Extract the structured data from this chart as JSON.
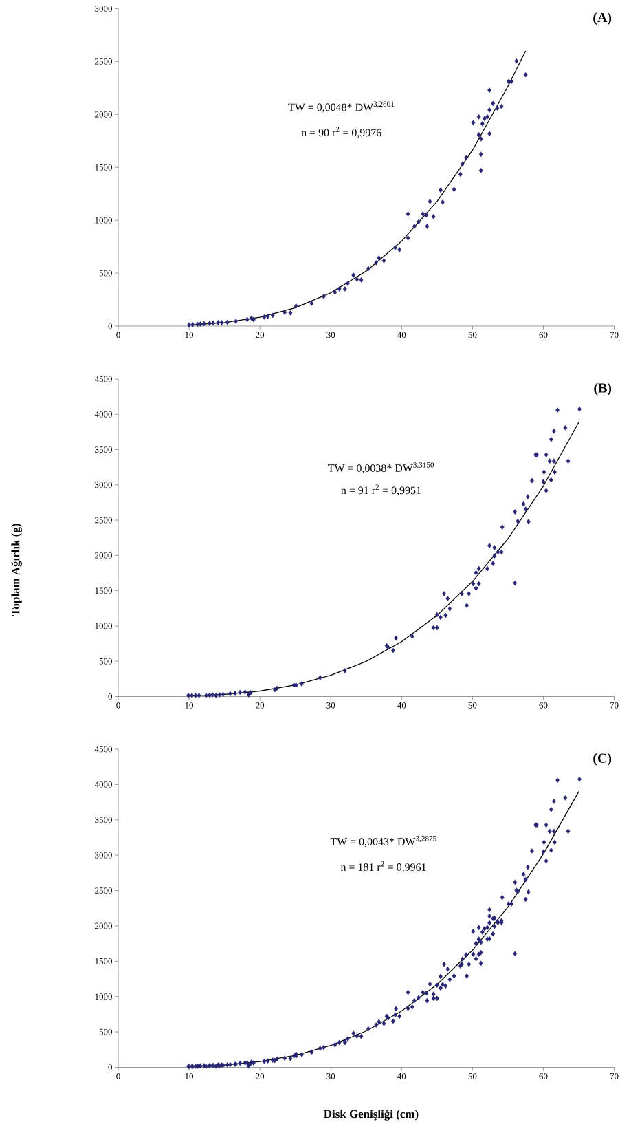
{
  "chart_data": [
    {
      "type": "scatter",
      "title": "(A)",
      "annotations": [
        "TW = 0,0048* DW$^{3,2601}$",
        "n = 90   r$^{2}$ = 0,9976"
      ],
      "xlim": [
        0,
        70
      ],
      "xticks": [
        0,
        10,
        20,
        30,
        40,
        50,
        60,
        70
      ],
      "ylim": [
        0,
        3000
      ],
      "yticks": [
        0,
        500,
        1000,
        1500,
        2000,
        2500,
        3000
      ],
      "marker": "diamond",
      "series": [
        {
          "type": "scatter",
          "color": "#262673",
          "x": [
            10,
            10.5,
            11.2,
            11.6,
            12.1,
            12.9,
            13.4,
            14.1,
            14.6,
            15.4,
            16.6,
            18.2,
            18.8,
            19.1,
            20.6,
            21.1,
            21.8,
            23.5,
            24.3,
            25.1,
            27.3,
            29,
            30.6,
            31.2,
            32,
            32.4,
            33.2,
            33.7,
            34.3,
            35.3,
            36.4,
            36.8,
            37.5,
            39.1,
            39.7,
            40.9,
            40.9,
            41.8,
            42.4,
            43,
            43.5,
            43.6,
            44,
            44.5,
            45.5,
            45.8,
            47.4,
            48.3,
            48.6,
            49.1,
            50.1,
            50.9,
            50.9,
            51.2,
            51.2,
            51.2,
            51.4,
            51.7,
            52.1,
            52.4,
            52.4,
            52.4,
            52.9,
            53.5,
            54.1,
            55.1,
            55.5,
            56.2,
            57.5
          ],
          "values": [
            10,
            13,
            16,
            20,
            23,
            26,
            29,
            33,
            33,
            36,
            46,
            62,
            75,
            62,
            85,
            91,
            101,
            130,
            124,
            189,
            215,
            280,
            319,
            351,
            351,
            403,
            481,
            442,
            436,
            543,
            598,
            644,
            618,
            741,
            722,
            1060,
            833,
            943,
            985,
            1060,
            1050,
            943,
            1177,
            1034,
            1285,
            1171,
            1291,
            1434,
            1532,
            1590,
            1922,
            1977,
            1808,
            1769,
            1470,
            1623,
            1912,
            1961,
            1977,
            2228,
            2042,
            1818,
            2104,
            2059,
            2075,
            2312,
            2312,
            2504,
            2374
          ]
        },
        {
          "type": "line",
          "color": "#000000",
          "marker": "none",
          "x": [
            10,
            15,
            20,
            25,
            30,
            35,
            40,
            45,
            50,
            55,
            57.5
          ],
          "values": [
            9,
            33,
            84,
            173,
            314,
            519,
            802,
            1177,
            1661,
            2265,
            2600
          ]
        }
      ]
    },
    {
      "type": "scatter",
      "title": "(B)",
      "ylabel": "Toplam Ağırlık (g)",
      "annotations": [
        "TW = 0,0038* DW$^{3,3150}$",
        "n = 91  r$^{2}$ = 0,9951"
      ],
      "xlim": [
        0,
        70
      ],
      "xticks": [
        0,
        10,
        20,
        30,
        40,
        50,
        60,
        70
      ],
      "ylim": [
        0,
        4500
      ],
      "yticks": [
        0,
        500,
        1000,
        1500,
        2000,
        2500,
        3000,
        3500,
        4000,
        4500
      ],
      "marker": "diamond",
      "series": [
        {
          "type": "scatter",
          "color": "#262673",
          "x": [
            9.9,
            10.4,
            10.9,
            11.4,
            12.4,
            12.9,
            13.3,
            13.8,
            14.3,
            14.8,
            15.8,
            16.5,
            17.2,
            17.9,
            18.4,
            18.7,
            22.1,
            22.4,
            24.8,
            25.1,
            25.9,
            28.5,
            32,
            37.9,
            38.1,
            38.8,
            39.2,
            41.5,
            44.5,
            45,
            45,
            45.5,
            46,
            46.2,
            46.5,
            46.8,
            48.5,
            49.2,
            49.5,
            50.1,
            50.5,
            50.5,
            50.9,
            50.9,
            52.1,
            52.4,
            52.9,
            53.1,
            53.1,
            53.6,
            54.1,
            54.2,
            56,
            56,
            56.4,
            57.2,
            57.5,
            57.8,
            57.9,
            58.4,
            58.9,
            59.1,
            60,
            60.1,
            60.4,
            60.4,
            60.9,
            61.1,
            61.1,
            61.5,
            61.5,
            61.6,
            62,
            63.1,
            63.5,
            65.1
          ],
          "values": [
            15,
            15,
            15,
            15,
            15,
            19,
            24,
            15,
            24,
            29,
            39,
            44,
            58,
            63,
            24,
            54,
            97,
            117,
            161,
            161,
            180,
            268,
            365,
            721,
            697,
            653,
            828,
            853,
            975,
            975,
            1160,
            1121,
            1457,
            1150,
            1389,
            1243,
            1457,
            1291,
            1457,
            1598,
            1535,
            1754,
            1813,
            1598,
            1813,
            2139,
            1886,
            2110,
            1993,
            2047,
            2047,
            2402,
            2617,
            1608,
            2485,
            2729,
            2656,
            2831,
            2480,
            3060,
            3426,
            3426,
            3046,
            3182,
            3426,
            2919,
            3338,
            3070,
            3645,
            3762,
            3338,
            3182,
            4059,
            3811,
            3338,
            4074
          ]
        },
        {
          "type": "line",
          "color": "#000000",
          "marker": "none",
          "x": [
            10,
            15,
            20,
            25,
            30,
            35,
            40,
            45,
            50,
            55,
            60,
            65
          ],
          "values": [
            8,
            30,
            78,
            164,
            300,
            499,
            778,
            1149,
            1630,
            2235,
            2983,
            3888
          ]
        }
      ]
    },
    {
      "type": "scatter",
      "title": "(C)",
      "xlabel": "Disk Genişliği (cm)",
      "annotations": [
        "TW = 0,0043* DW$^{3,2875}$",
        "n = 181   r$^{2}$ = 0,9961"
      ],
      "xlim": [
        0,
        70
      ],
      "xticks": [
        0,
        10,
        20,
        30,
        40,
        50,
        60,
        70
      ],
      "ylim": [
        0,
        4500
      ],
      "yticks": [
        0,
        500,
        1000,
        1500,
        2000,
        2500,
        3000,
        3500,
        4000,
        4500
      ],
      "marker": "diamond",
      "series": [
        {
          "type": "scatter",
          "color": "#262673",
          "x": [
            10,
            10.5,
            11.2,
            11.6,
            12.1,
            12.9,
            13.4,
            14.1,
            14.6,
            15.4,
            16.6,
            18.2,
            18.8,
            19.1,
            20.6,
            21.1,
            21.8,
            23.5,
            24.3,
            25.1,
            27.3,
            29,
            30.6,
            31.2,
            32,
            32.4,
            33.2,
            33.7,
            34.3,
            35.3,
            36.4,
            36.8,
            37.5,
            39.1,
            39.7,
            40.9,
            40.9,
            41.8,
            42.4,
            43,
            43.5,
            43.6,
            44,
            44.5,
            45.5,
            45.8,
            47.4,
            48.3,
            48.6,
            49.1,
            50.1,
            50.9,
            50.9,
            51.2,
            51.2,
            51.2,
            51.4,
            51.7,
            52.1,
            52.4,
            52.4,
            52.4,
            52.9,
            53.5,
            54.1,
            55.1,
            55.5,
            56.2,
            57.5,
            9.9,
            10.4,
            10.9,
            11.4,
            12.4,
            12.9,
            13.3,
            13.8,
            14.3,
            14.8,
            15.8,
            16.5,
            17.2,
            17.9,
            18.4,
            18.7,
            22.1,
            22.4,
            24.8,
            25.1,
            25.9,
            28.5,
            32,
            37.9,
            38.1,
            38.8,
            39.2,
            41.5,
            44.5,
            45,
            45,
            45.5,
            46,
            46.2,
            46.5,
            46.8,
            48.5,
            49.2,
            49.5,
            50.1,
            50.5,
            50.5,
            50.9,
            50.9,
            52.1,
            52.4,
            52.9,
            53.1,
            53.1,
            53.6,
            54.1,
            54.2,
            56,
            56,
            56.4,
            57.2,
            57.5,
            57.8,
            57.9,
            58.4,
            58.9,
            59.1,
            60,
            60.1,
            60.4,
            60.4,
            60.9,
            61.1,
            61.1,
            61.5,
            61.5,
            61.6,
            62,
            63.1,
            63.5,
            65.1
          ],
          "values": [
            10,
            13,
            16,
            20,
            23,
            26,
            29,
            33,
            33,
            36,
            46,
            62,
            75,
            62,
            85,
            91,
            101,
            130,
            124,
            189,
            215,
            280,
            319,
            351,
            351,
            403,
            481,
            442,
            436,
            543,
            598,
            644,
            618,
            741,
            722,
            1060,
            833,
            943,
            985,
            1060,
            1050,
            943,
            1177,
            1034,
            1285,
            1171,
            1291,
            1434,
            1532,
            1590,
            1922,
            1977,
            1808,
            1769,
            1470,
            1623,
            1912,
            1961,
            1977,
            2228,
            2042,
            1818,
            2104,
            2059,
            2075,
            2312,
            2312,
            2504,
            2374,
            15,
            15,
            15,
            15,
            15,
            19,
            24,
            15,
            24,
            29,
            39,
            44,
            58,
            63,
            24,
            54,
            97,
            117,
            161,
            161,
            180,
            268,
            365,
            721,
            697,
            653,
            828,
            853,
            975,
            975,
            1160,
            1121,
            1457,
            1150,
            1389,
            1243,
            1457,
            1291,
            1457,
            1598,
            1535,
            1754,
            1813,
            1598,
            1813,
            2139,
            1886,
            2110,
            1993,
            2047,
            2047,
            2402,
            2617,
            1608,
            2485,
            2729,
            2656,
            2831,
            2480,
            3060,
            3426,
            3426,
            3046,
            3182,
            3426,
            2919,
            3338,
            3070,
            3645,
            3762,
            3338,
            3182,
            4059,
            3811,
            3338,
            4074
          ]
        },
        {
          "type": "line",
          "color": "#000000",
          "marker": "none",
          "x": [
            10,
            15,
            20,
            25,
            30,
            35,
            40,
            45,
            50,
            55,
            60,
            65
          ],
          "values": [
            8,
            32,
            81,
            170,
            309,
            513,
            795,
            1172,
            1656,
            2265,
            3017,
            3900
          ]
        }
      ]
    }
  ]
}
